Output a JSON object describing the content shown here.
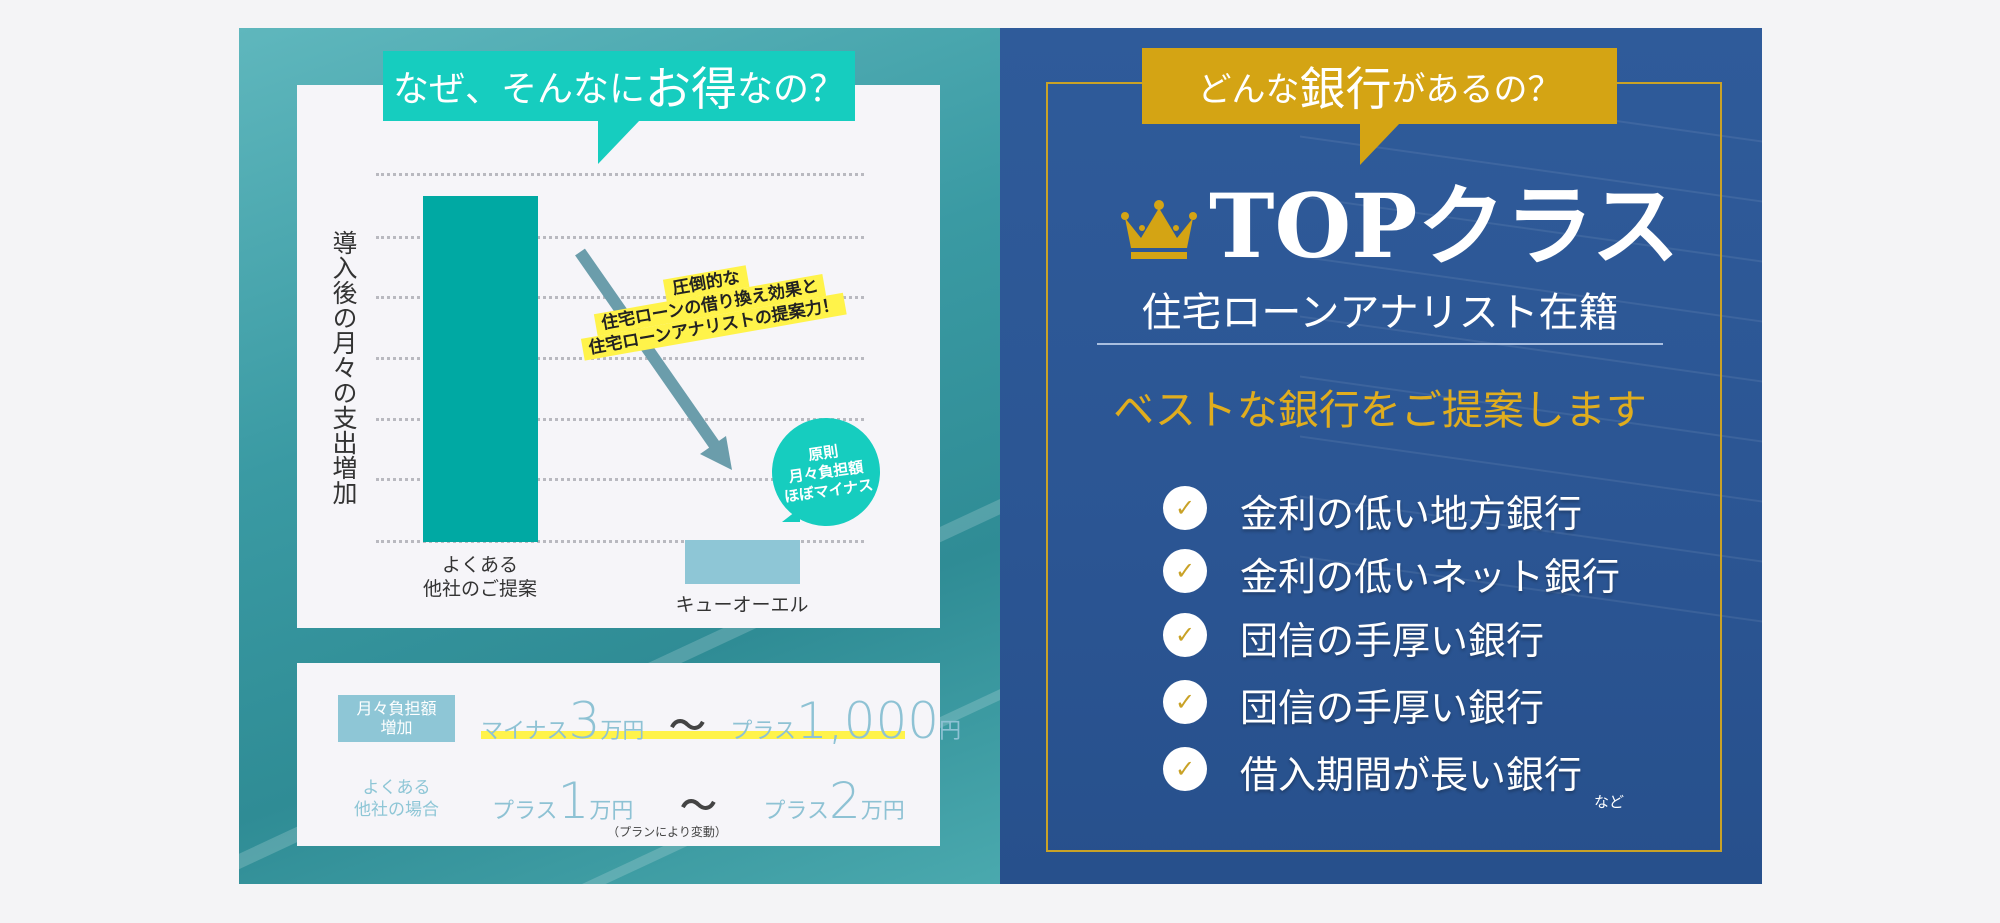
{
  "left": {
    "bubble_title_pre": "なぜ、そんなに",
    "bubble_title_em": "お得",
    "bubble_title_post": "なの？",
    "y_axis_label": "導入後の月々の支出増加",
    "categories": [
      "よくある\n他社のご提案",
      "キューオーエル"
    ],
    "callout_lines": [
      "圧倒的な",
      "住宅ローンの借り換え効果と",
      "住宅ローンアナリストの提案力！"
    ],
    "circle_lines": [
      "原則",
      "月々負担額",
      "ほぼマイナス"
    ],
    "table": {
      "row1_label": "月々負担額\n増加",
      "row1": {
        "a_pre": "マイナス",
        "a_num": "3",
        "a_unit": "万円",
        "tilde": "〜",
        "b_pre": "プラス",
        "b_num": "1,000",
        "b_unit": "円"
      },
      "row2_label": "よくある\n他社の場合",
      "row2": {
        "a_pre": "プラス",
        "a_num": "1",
        "a_unit": "万円",
        "tilde": "〜",
        "b_pre": "プラス",
        "b_num": "2",
        "b_unit": "万円"
      },
      "note": "（プランにより変動）"
    },
    "colors": {
      "bar_other": "#00a9a3",
      "bar_qol": "#8ec6d6",
      "bubble": "#16cdbf",
      "callout": "#fff34a"
    }
  },
  "right": {
    "bubble_pre": "どんな",
    "bubble_em": "銀行",
    "bubble_post": "があるの？",
    "headline": "TOPクラス",
    "subhead": "住宅ローンアナリスト在籍",
    "tagline": "ベストな銀行をご提案します",
    "items": [
      "金利の低い地方銀行",
      "金利の低いネット銀行",
      "団信の手厚い銀行",
      "団信の手厚い銀行",
      "借入期間が長い銀行"
    ],
    "etc": "など",
    "colors": {
      "gold": "#d4a414",
      "navy": "#2c5797"
    }
  }
}
